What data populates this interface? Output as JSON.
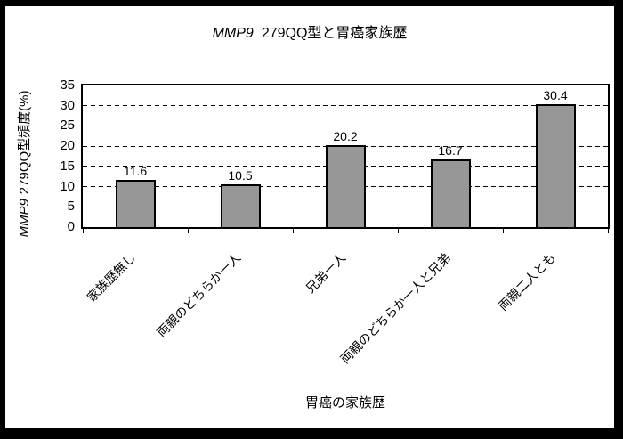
{
  "window": {
    "background": "#ffffff",
    "frame_border_color": "#000000"
  },
  "chart_data": {
    "type": "bar",
    "title": "MMP9 279QQ型と胃癌家族歴",
    "title_italic_prefix": "MMP9",
    "title_rest": "279QQ型と胃癌家族歴",
    "ylabel": "MMP9 279QQ型頻度(%)",
    "ylabel_italic_prefix": "MMP9",
    "ylabel_rest": "279QQ型頻度(%)",
    "xlabel": "胃癌の家族歴",
    "categories": [
      "家族歴無し",
      "両親のどちらか一人",
      "兄弟一人",
      "両親のどちらか一人と兄弟",
      "両親二人とも"
    ],
    "values": [
      11.6,
      10.5,
      20.2,
      16.7,
      30.4
    ],
    "value_labels": [
      "11.6",
      "10.5",
      "20.2",
      "16.7",
      "30.4"
    ],
    "ylim": [
      0,
      35
    ],
    "ytick_step": 5,
    "yticks": [
      "0",
      "5",
      "10",
      "15",
      "20",
      "25",
      "30",
      "35"
    ],
    "grid": "horizontal-dashed",
    "legend": "none",
    "bar_fill": "#979797",
    "bar_border": "#000000"
  }
}
